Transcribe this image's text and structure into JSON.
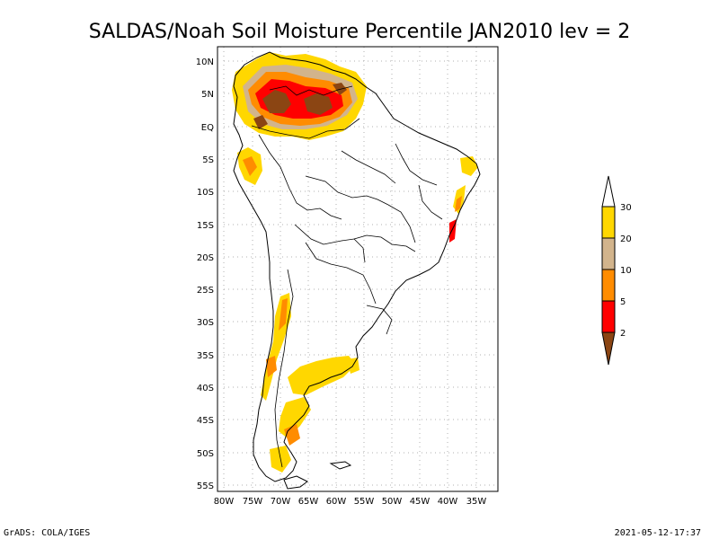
{
  "title": "SALDAS/Noah Soil Moisture Percentile JAN2010 lev = 2",
  "footer_left": "GrADS: COLA/IGES",
  "footer_right": "2021-05-12-17:37",
  "lat_ticks": [
    "10N",
    "5N",
    "EQ",
    "5S",
    "10S",
    "15S",
    "20S",
    "25S",
    "30S",
    "35S",
    "40S",
    "45S",
    "50S",
    "55S"
  ],
  "lon_ticks": [
    "80W",
    "75W",
    "70W",
    "65W",
    "60W",
    "55W",
    "50W",
    "45W",
    "40W",
    "35W"
  ],
  "legend": {
    "labels": [
      "2",
      "5",
      "10",
      "20",
      "30"
    ],
    "colors": {
      "below_2": "#8b4513",
      "2_5": "#ff0000",
      "5_10": "#ff8c00",
      "10_20": "#d2b48c",
      "20_30": "#ffd700",
      "above_30": "#ffffff"
    }
  }
}
